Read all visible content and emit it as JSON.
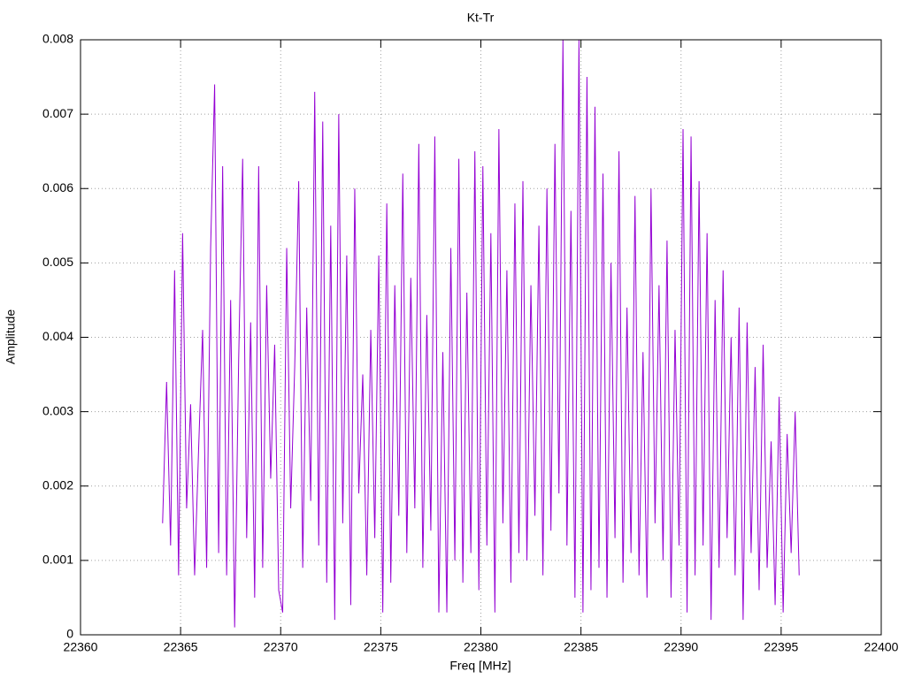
{
  "chart_data": {
    "type": "line",
    "title": "Kt-Tr",
    "x_label": "Freq [MHz]",
    "y_label": "Amplitude",
    "x": [
      22364.1,
      22364.3,
      22364.5,
      22364.7,
      22364.9,
      22365.1,
      22365.3,
      22365.5,
      22365.7,
      22365.9,
      22366.1,
      22366.3,
      22366.5,
      22366.7,
      22366.9,
      22367.1,
      22367.3,
      22367.5,
      22367.7,
      22367.9,
      22368.1,
      22368.3,
      22368.5,
      22368.7,
      22368.9,
      22369.1,
      22369.3,
      22369.5,
      22369.7,
      22369.9,
      22370.1,
      22370.3,
      22370.5,
      22370.7,
      22370.9,
      22371.1,
      22371.3,
      22371.5,
      22371.7,
      22371.9,
      22372.1,
      22372.3,
      22372.5,
      22372.7,
      22372.9,
      22373.1,
      22373.3,
      22373.5,
      22373.7,
      22373.9,
      22374.1,
      22374.3,
      22374.5,
      22374.7,
      22374.9,
      22375.1,
      22375.3,
      22375.5,
      22375.7,
      22375.9,
      22376.1,
      22376.3,
      22376.5,
      22376.7,
      22376.9,
      22377.1,
      22377.3,
      22377.5,
      22377.7,
      22377.9,
      22378.1,
      22378.3,
      22378.5,
      22378.7,
      22378.9,
      22379.1,
      22379.3,
      22379.5,
      22379.7,
      22379.9,
      22380.1,
      22380.3,
      22380.5,
      22380.7,
      22380.9,
      22381.1,
      22381.3,
      22381.5,
      22381.7,
      22381.9,
      22382.1,
      22382.3,
      22382.5,
      22382.7,
      22382.9,
      22383.1,
      22383.3,
      22383.5,
      22383.7,
      22383.9,
      22384.1,
      22384.3,
      22384.5,
      22384.7,
      22384.9,
      22385.1,
      22385.3,
      22385.5,
      22385.7,
      22385.9,
      22386.1,
      22386.3,
      22386.5,
      22386.7,
      22386.9,
      22387.1,
      22387.3,
      22387.5,
      22387.7,
      22387.9,
      22388.1,
      22388.3,
      22388.5,
      22388.7,
      22388.9,
      22389.1,
      22389.3,
      22389.5,
      22389.7,
      22389.9,
      22390.1,
      22390.3,
      22390.5,
      22390.7,
      22390.9,
      22391.1,
      22391.3,
      22391.5,
      22391.7,
      22391.9,
      22392.1,
      22392.3,
      22392.5,
      22392.7,
      22392.9,
      22393.1,
      22393.3,
      22393.5,
      22393.7,
      22393.9,
      22394.1,
      22394.3,
      22394.5,
      22394.7,
      22394.9,
      22395.1,
      22395.3,
      22395.5,
      22395.7,
      22395.9
    ],
    "series": [
      {
        "color": "#9400d3",
        "values": [
          0.0015,
          0.0034,
          0.0012,
          0.0049,
          0.0008,
          0.0054,
          0.0017,
          0.0031,
          0.0008,
          0.0025,
          0.0041,
          0.0009,
          0.0052,
          0.0074,
          0.0011,
          0.0063,
          0.0008,
          0.0045,
          0.0001,
          0.0037,
          0.0064,
          0.0013,
          0.0042,
          0.0005,
          0.0063,
          0.0009,
          0.0047,
          0.0021,
          0.0039,
          0.0006,
          0.0003,
          0.0052,
          0.0017,
          0.0036,
          0.0061,
          0.0009,
          0.0044,
          0.0018,
          0.0073,
          0.0012,
          0.0069,
          0.0007,
          0.0055,
          0.0002,
          0.007,
          0.0015,
          0.0051,
          0.0004,
          0.006,
          0.0019,
          0.0035,
          0.0008,
          0.0041,
          0.0013,
          0.0051,
          0.0003,
          0.0058,
          0.0007,
          0.0047,
          0.0016,
          0.0062,
          0.0011,
          0.0048,
          0.0017,
          0.0066,
          0.0009,
          0.0043,
          0.0014,
          0.0067,
          0.0003,
          0.0038,
          0.0003,
          0.0052,
          0.001,
          0.0064,
          0.0007,
          0.0046,
          0.0011,
          0.0065,
          0.0006,
          0.0063,
          0.0012,
          0.0054,
          0.0003,
          0.0068,
          0.0015,
          0.0049,
          0.0007,
          0.0058,
          0.0011,
          0.0061,
          0.001,
          0.0047,
          0.0016,
          0.0055,
          0.0008,
          0.006,
          0.0014,
          0.0066,
          0.0019,
          0.008,
          0.0012,
          0.0057,
          0.0005,
          0.008,
          0.0003,
          0.0075,
          0.0006,
          0.0071,
          0.0009,
          0.0062,
          0.0005,
          0.005,
          0.0013,
          0.0065,
          0.0007,
          0.0044,
          0.0011,
          0.0059,
          0.0008,
          0.0038,
          0.0005,
          0.006,
          0.0015,
          0.0047,
          0.001,
          0.0053,
          0.0005,
          0.0041,
          0.0012,
          0.0068,
          0.0003,
          0.0067,
          0.0008,
          0.0061,
          0.0012,
          0.0054,
          0.0002,
          0.0045,
          0.0009,
          0.0049,
          0.0013,
          0.004,
          0.0008,
          0.0044,
          0.0002,
          0.0042,
          0.0011,
          0.0036,
          0.0006,
          0.0039,
          0.0009,
          0.0026,
          0.0004,
          0.0032,
          0.0003,
          0.0027,
          0.0011,
          0.003,
          0.0008
        ]
      }
    ],
    "xlim": [
      22360,
      22400
    ],
    "xticks": [
      22360,
      22365,
      22370,
      22375,
      22380,
      22385,
      22390,
      22395,
      22400
    ],
    "ylim": [
      0,
      0.008
    ],
    "yticks": [
      0,
      0.001,
      0.002,
      0.003,
      0.004,
      0.005,
      0.006,
      0.007,
      0.008
    ],
    "grid": true
  }
}
